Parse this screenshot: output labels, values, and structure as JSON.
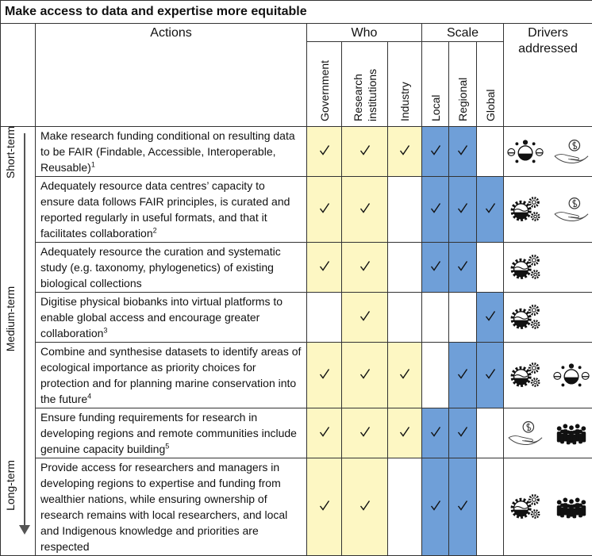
{
  "title": "Make access to data and expertise more equitable",
  "header": {
    "actions": "Actions",
    "who": "Who",
    "scale": "Scale",
    "drivers": "Drivers addressed",
    "who_columns": [
      "Government",
      "Research institutions",
      "Industry"
    ],
    "scale_columns": [
      "Local",
      "Regional",
      "Global"
    ]
  },
  "timeline": [
    "Short-term",
    "Medium-term",
    "Long-term"
  ],
  "rows": [
    {
      "action": "Make research funding conditional on resulting data to be FAIR (Findable, Accessible, Interoperable, Reusable)",
      "note": "1",
      "who": [
        true,
        true,
        true
      ],
      "scale": [
        true,
        true,
        false
      ]
    },
    {
      "action": "Adequately resource data centres’ capacity to ensure data follows FAIR principles, is curated and reported regularly in useful formats, and that it facilitates collaboration",
      "note": "2",
      "who": [
        true,
        true,
        false
      ],
      "scale": [
        true,
        true,
        true
      ]
    },
    {
      "action": "Adequately resource the curation and systematic study (e.g. taxonomy, phylogenetics) of existing biological collections",
      "who": [
        true,
        true,
        false
      ],
      "scale": [
        true,
        true,
        false
      ]
    },
    {
      "action": "Digitise physical biobanks into virtual platforms to enable global access and encourage greater collaboration",
      "note": "3",
      "who": [
        false,
        true,
        false
      ],
      "scale": [
        false,
        false,
        true
      ]
    },
    {
      "action": "Combine and synthesise datasets to identify areas of ecological importance as priority choices for protection and for planning marine conservation into the future",
      "note": "4",
      "who": [
        true,
        true,
        true
      ],
      "scale": [
        false,
        true,
        true
      ]
    },
    {
      "action": "Ensure funding requirements for research in developing regions and remote communities include genuine capacity building",
      "note": "5",
      "who": [
        true,
        true,
        true
      ],
      "scale": [
        true,
        true,
        false
      ]
    },
    {
      "action": "Provide access for researchers and managers in developing regions to expertise and funding from wealthier nations, while ensuring ownership of research remains with local researchers, and local and Indigenous knowledge and priorities are respected",
      "who": [
        true,
        true,
        false
      ],
      "scale": [
        true,
        true,
        false
      ]
    }
  ]
}
